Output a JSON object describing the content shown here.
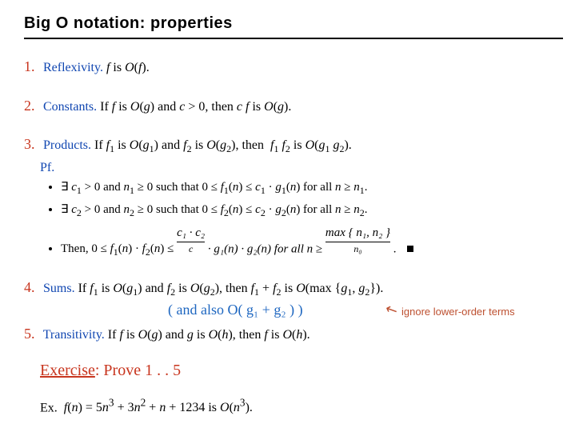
{
  "title": "Big O notation:  properties",
  "colors": {
    "accent_red": "#c8351e",
    "accent_blue_name": "#1046b1",
    "hand_blue": "#1d66c0",
    "note_orange": "#bd5030",
    "text": "#000000",
    "background": "#ffffff"
  },
  "typography": {
    "title_family": "Gill Sans / sans-serif",
    "title_size_pt": 15,
    "body_family": "Times / serif (italic for math)",
    "body_size_pt": 12,
    "hand_family": "script/handwritten",
    "note_size_pt": 10
  },
  "properties": [
    {
      "num": "1.",
      "name": "Reflexivity.",
      "text_html": "<span class='it'>f</span> is <span class='it'>O</span>(<span class='it'>f</span>)."
    },
    {
      "num": "2.",
      "name": "Constants.",
      "text_html": "If <span class='it'>f</span> is <span class='it'>O</span>(<span class='it'>g</span>) and <span class='it'>c</span> &gt; 0, then <span class='it'>c f</span> is <span class='it'>O</span>(<span class='it'>g</span>)."
    },
    {
      "num": "3.",
      "name": "Products.",
      "text_html": "If <span class='it'>f</span><span class='sub'>1</span> is <span class='it'>O</span>(<span class='it'>g</span><span class='sub'>1</span>) and <span class='it'>f</span><span class='sub'>2</span> is <span class='it'>O</span>(<span class='it'>g</span><span class='sub'>2</span>), then &nbsp;<span class='it'>f</span><span class='sub'>1</span> <span class='it'>f</span><span class='sub'>2</span> is <span class='it'>O</span>(<span class='it'>g</span><span class='sub'>1</span> <span class='it'>g</span><span class='sub'>2</span>).",
      "pf_label": "Pf.",
      "proof": [
        "∃ <span class='it'>c</span><span class='sub'>1</span> &gt; 0 and <span class='it'>n</span><span class='sub'>1</span> ≥ 0 such that 0 ≤ <span class='it'>f</span><span class='sub'>1</span>(<span class='it'>n</span>) ≤ <span class='it'>c</span><span class='sub'>1</span> · <span class='it'>g</span><span class='sub'>1</span>(<span class='it'>n</span>) for all <span class='it'>n</span> ≥ <span class='it'>n</span><span class='sub'>1</span>.",
        "∃ <span class='it'>c</span><span class='sub'>2</span> &gt; 0 and <span class='it'>n</span><span class='sub'>2</span> ≥ 0 such that 0 ≤ <span class='it'>f</span><span class='sub'>2</span>(<span class='it'>n</span>) ≤ <span class='it'>c</span><span class='sub'>2</span> · <span class='it'>g</span><span class='sub'>2</span>(<span class='it'>n</span>) for all <span class='it'>n</span> ≥ <span class='it'>n</span><span class='sub'>2</span>.",
        "Then, 0 ≤ <span class='it'>f</span><span class='sub'>1</span>(<span class='it'>n</span>) · <span class='it'>f</span><span class='sub'>2</span>(<span class='it'>n</span>) ≤ "
      ],
      "underbraces": {
        "c_expr": "c₁ · c₂",
        "c_tag": "c",
        "mid": " · g₁(n) · g₂(n) for all n ≥ ",
        "n0_expr": "max { n₁, n₂ }",
        "n0_tag": "n₀"
      }
    },
    {
      "num": "4.",
      "name": "Sums.",
      "text_html": "If <span class='it'>f</span><span class='sub'>1</span> is <span class='it'>O</span>(<span class='it'>g</span><span class='sub'>1</span>) and <span class='it'>f</span><span class='sub'>2</span> is <span class='it'>O</span>(<span class='it'>g</span><span class='sub'>2</span>), then <span class='it'>f</span><span class='sub'>1</span> + <span class='it'>f</span><span class='sub'>2</span> is <span class='it'>O</span>(max {<span class='it'>g</span><span class='sub'>1</span>, <span class='it'>g</span><span class='sub'>2</span>}).",
      "hand_note": "( and also  O( g₁ + g₂ ) )",
      "arrow_note": "ignore lower-order terms"
    },
    {
      "num": "5.",
      "name": "Transitivity.",
      "text_html": "If <span class='it'>f</span> is <span class='it'>O</span>(<span class='it'>g</span>) and <span class='it'>g</span> is <span class='it'>O</span>(<span class='it'>h</span>), then <span class='it'>f</span> is <span class='it'>O</span>(<span class='it'>h</span>)."
    }
  ],
  "exercise": {
    "hand_label_underlined": "Exercise",
    "hand_rest": ": Prove  1 . . 5"
  },
  "example": {
    "label": "Ex.",
    "text_html": "<span class='it'>f</span>(<span class='it'>n</span>) = 5<span class='it'>n</span><sup>3</sup> + 3<span class='it'>n</span><sup>2</sup> + <span class='it'>n</span> + 1234 is <span class='it'>O</span>(<span class='it'>n</span><sup>3</sup>)."
  }
}
